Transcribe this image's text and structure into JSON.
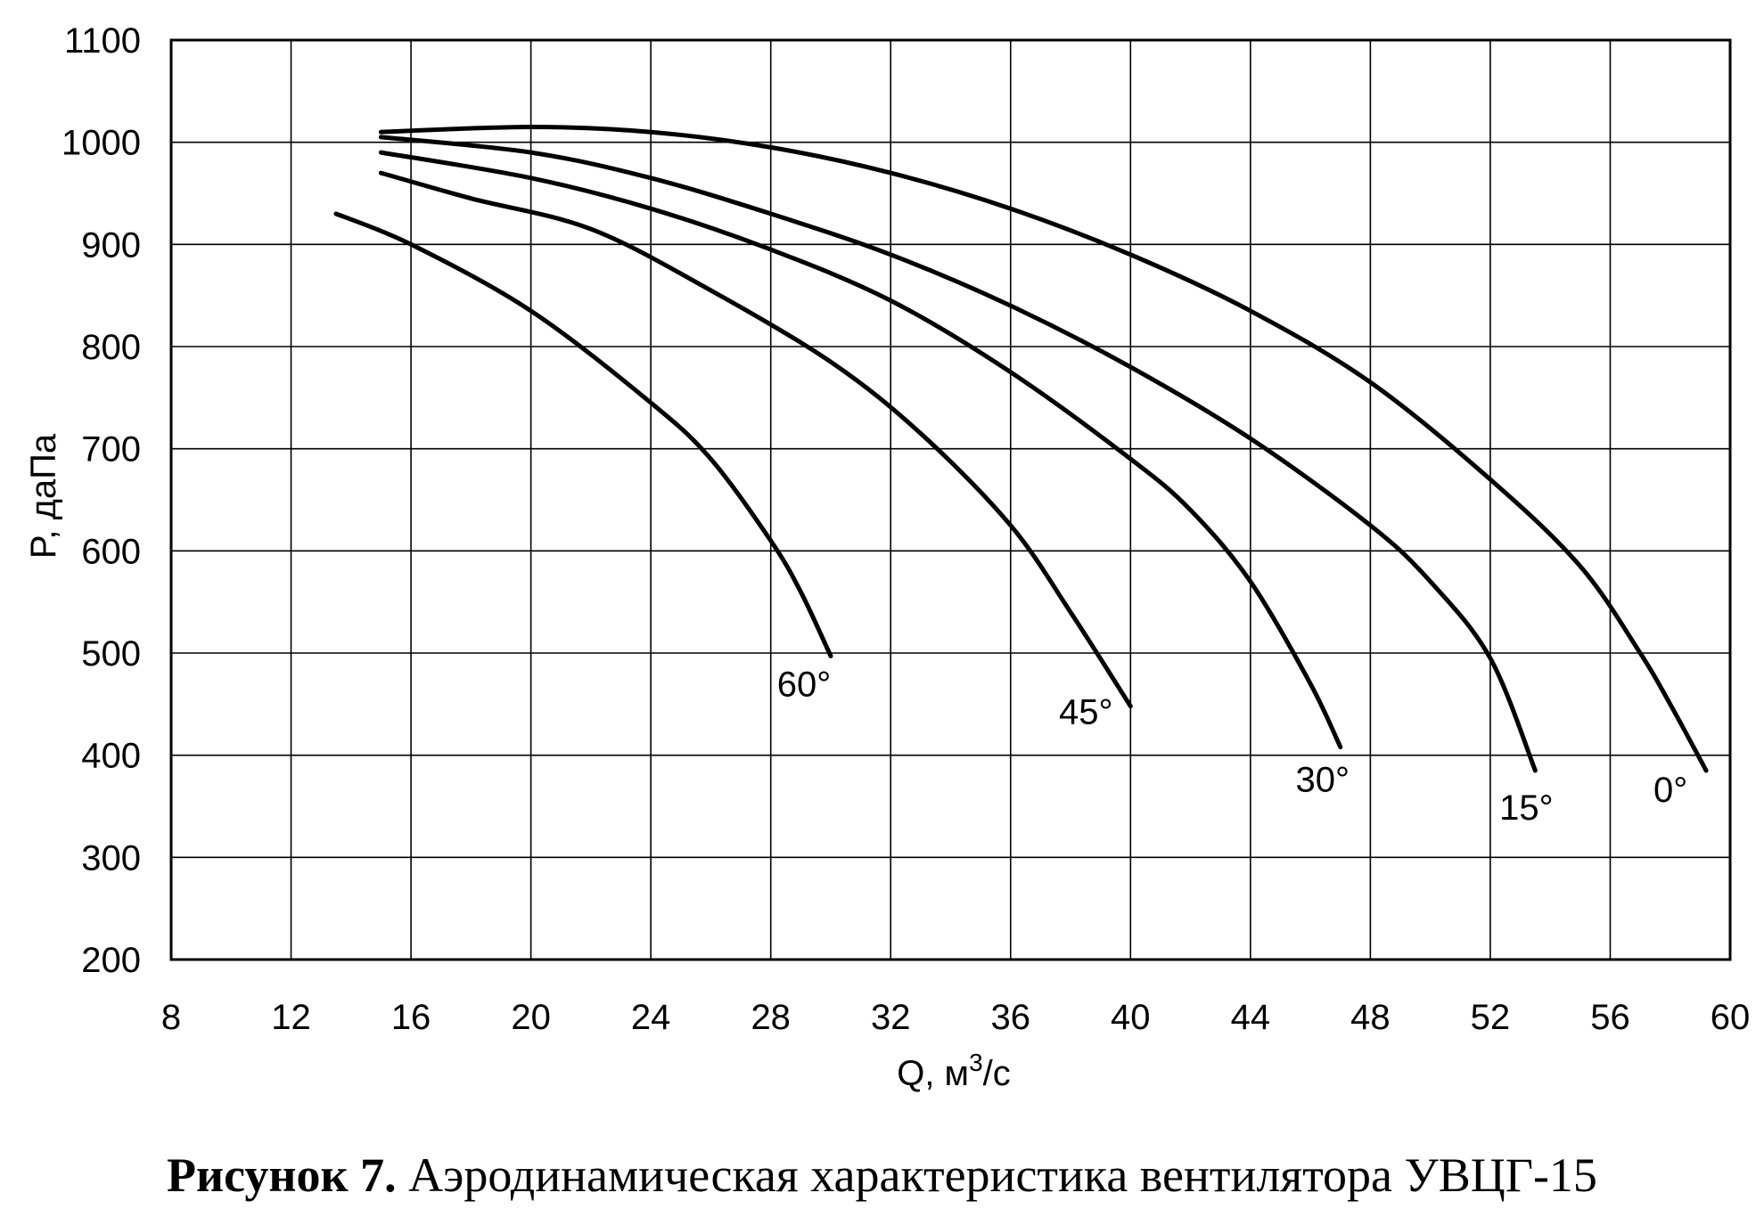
{
  "chart_data": {
    "type": "line",
    "xlabel_main": "Q, м",
    "xlabel_sup": "3",
    "xlabel_tail": "/с",
    "ylabel": "P, даПа",
    "xlim": [
      8,
      60
    ],
    "ylim": [
      200,
      1100
    ],
    "xticks": [
      8,
      12,
      16,
      20,
      24,
      28,
      32,
      36,
      40,
      44,
      48,
      52,
      56,
      60
    ],
    "yticks": [
      200,
      300,
      400,
      500,
      600,
      700,
      800,
      900,
      1000,
      1100
    ],
    "grid": true,
    "series": [
      {
        "name": "0°",
        "points": [
          [
            15,
            1010
          ],
          [
            20,
            1015
          ],
          [
            24,
            1010
          ],
          [
            28,
            995
          ],
          [
            32,
            970
          ],
          [
            36,
            935
          ],
          [
            40,
            890
          ],
          [
            44,
            835
          ],
          [
            48,
            765
          ],
          [
            52,
            670
          ],
          [
            55,
            585
          ],
          [
            57,
            500
          ],
          [
            58,
            450
          ],
          [
            59.2,
            385
          ]
        ]
      },
      {
        "name": "15°",
        "points": [
          [
            15,
            1005
          ],
          [
            20,
            990
          ],
          [
            24,
            965
          ],
          [
            28,
            930
          ],
          [
            32,
            890
          ],
          [
            36,
            840
          ],
          [
            40,
            780
          ],
          [
            44,
            710
          ],
          [
            48,
            625
          ],
          [
            50,
            570
          ],
          [
            52,
            495
          ],
          [
            53.5,
            385
          ]
        ]
      },
      {
        "name": "30°",
        "points": [
          [
            15,
            990
          ],
          [
            20,
            965
          ],
          [
            24,
            935
          ],
          [
            28,
            895
          ],
          [
            32,
            845
          ],
          [
            36,
            775
          ],
          [
            40,
            690
          ],
          [
            42,
            640
          ],
          [
            44,
            570
          ],
          [
            46,
            470
          ],
          [
            47,
            408
          ]
        ]
      },
      {
        "name": "45°",
        "points": [
          [
            15,
            970
          ],
          [
            18,
            945
          ],
          [
            22,
            915
          ],
          [
            26,
            855
          ],
          [
            30,
            785
          ],
          [
            33,
            715
          ],
          [
            36,
            625
          ],
          [
            38,
            540
          ],
          [
            40,
            448
          ]
        ]
      },
      {
        "name": "60°",
        "points": [
          [
            13.5,
            930
          ],
          [
            16,
            900
          ],
          [
            20,
            835
          ],
          [
            24,
            745
          ],
          [
            26,
            690
          ],
          [
            28,
            610
          ],
          [
            29,
            560
          ],
          [
            30,
            497
          ]
        ]
      }
    ],
    "annotations": [
      "60°",
      "45°",
      "30°",
      "15°",
      "0°"
    ]
  },
  "caption": {
    "bold": "Рисунок 7.",
    "text": " Аэродинамическая характеристика вентилятора УВЦГ-15"
  }
}
